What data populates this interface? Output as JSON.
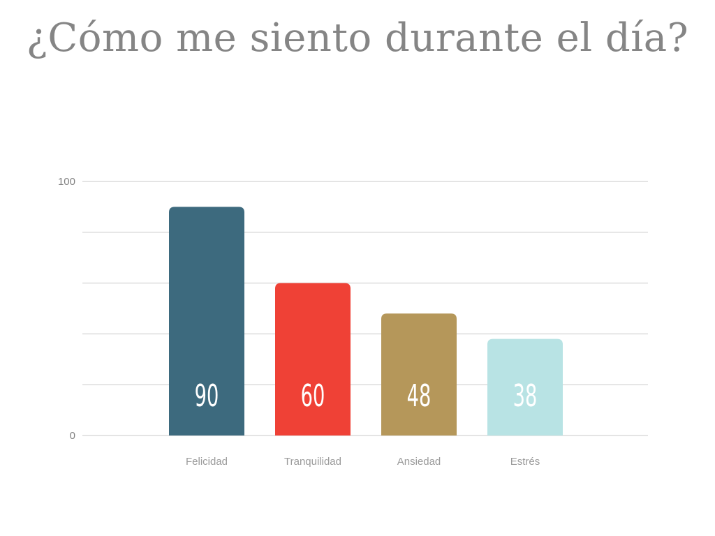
{
  "chart_data": {
    "type": "bar",
    "title": "¿Cómo me siento durante el día?",
    "categories": [
      "Felicidad",
      "Tranquilidad",
      "Ansiedad",
      "Estrés"
    ],
    "values": [
      90,
      60,
      48,
      38
    ],
    "colors": [
      "#3d6a7e",
      "#ef4136",
      "#b5975a",
      "#b8e3e4"
    ],
    "ylim": [
      0,
      100
    ],
    "ytick_labels": [
      "0",
      "100"
    ],
    "grid": true,
    "gridline_count": 6,
    "data_labels_inside": true,
    "value_label_color": "#ffffff",
    "grid_color": "#dcdcdc"
  }
}
